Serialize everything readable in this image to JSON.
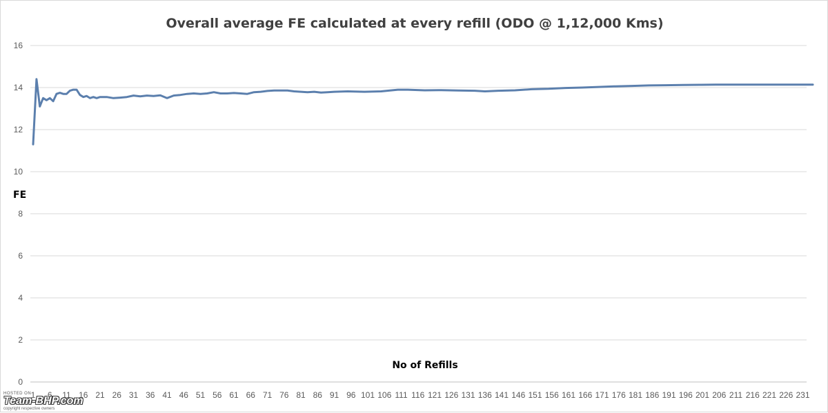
{
  "chart_data": {
    "type": "line",
    "title": "Overall average FE calculated at every refill (ODO @ 1,12,000 Kms)",
    "xlabel": "No of Refills",
    "ylabel": "FE",
    "ylim": [
      0,
      16
    ],
    "yticks": [
      0,
      2,
      4,
      6,
      8,
      10,
      12,
      14,
      16
    ],
    "xlim": [
      1,
      235
    ],
    "xticks": [
      1,
      6,
      11,
      16,
      21,
      26,
      31,
      36,
      41,
      46,
      51,
      56,
      61,
      66,
      71,
      76,
      81,
      86,
      91,
      96,
      101,
      106,
      111,
      116,
      121,
      126,
      131,
      136,
      141,
      146,
      151,
      156,
      161,
      166,
      171,
      176,
      181,
      186,
      191,
      196,
      201,
      206,
      211,
      216,
      221,
      226,
      231
    ],
    "grid": "horizontal",
    "line_color": "#5b7fad",
    "series": [
      {
        "points": [
          [
            1,
            11.3
          ],
          [
            2,
            14.4
          ],
          [
            3,
            13.1
          ],
          [
            4,
            13.5
          ],
          [
            5,
            13.4
          ],
          [
            6,
            13.5
          ],
          [
            7,
            13.35
          ],
          [
            8,
            13.7
          ],
          [
            9,
            13.75
          ],
          [
            10,
            13.7
          ],
          [
            11,
            13.7
          ],
          [
            12,
            13.85
          ],
          [
            13,
            13.9
          ],
          [
            14,
            13.9
          ],
          [
            15,
            13.65
          ],
          [
            16,
            13.55
          ],
          [
            17,
            13.6
          ],
          [
            18,
            13.5
          ],
          [
            19,
            13.55
          ],
          [
            20,
            13.5
          ],
          [
            21,
            13.55
          ],
          [
            23,
            13.55
          ],
          [
            25,
            13.5
          ],
          [
            27,
            13.52
          ],
          [
            29,
            13.55
          ],
          [
            31,
            13.62
          ],
          [
            33,
            13.58
          ],
          [
            35,
            13.62
          ],
          [
            37,
            13.6
          ],
          [
            39,
            13.63
          ],
          [
            41,
            13.5
          ],
          [
            43,
            13.62
          ],
          [
            45,
            13.65
          ],
          [
            47,
            13.7
          ],
          [
            49,
            13.72
          ],
          [
            51,
            13.7
          ],
          [
            53,
            13.72
          ],
          [
            55,
            13.78
          ],
          [
            57,
            13.72
          ],
          [
            59,
            13.72
          ],
          [
            61,
            13.74
          ],
          [
            63,
            13.72
          ],
          [
            65,
            13.7
          ],
          [
            67,
            13.78
          ],
          [
            69,
            13.8
          ],
          [
            71,
            13.84
          ],
          [
            73,
            13.86
          ],
          [
            75,
            13.86
          ],
          [
            77,
            13.86
          ],
          [
            79,
            13.82
          ],
          [
            81,
            13.8
          ],
          [
            83,
            13.78
          ],
          [
            85,
            13.8
          ],
          [
            87,
            13.76
          ],
          [
            89,
            13.78
          ],
          [
            91,
            13.8
          ],
          [
            95,
            13.82
          ],
          [
            100,
            13.8
          ],
          [
            105,
            13.82
          ],
          [
            110,
            13.9
          ],
          [
            113,
            13.9
          ],
          [
            118,
            13.87
          ],
          [
            123,
            13.88
          ],
          [
            128,
            13.86
          ],
          [
            133,
            13.85
          ],
          [
            136,
            13.82
          ],
          [
            140,
            13.85
          ],
          [
            145,
            13.87
          ],
          [
            150,
            13.92
          ],
          [
            155,
            13.94
          ],
          [
            160,
            13.98
          ],
          [
            165,
            14.0
          ],
          [
            170,
            14.03
          ],
          [
            175,
            14.06
          ],
          [
            180,
            14.08
          ],
          [
            185,
            14.1
          ],
          [
            190,
            14.11
          ],
          [
            195,
            14.12
          ],
          [
            200,
            14.13
          ],
          [
            205,
            14.14
          ],
          [
            210,
            14.14
          ],
          [
            215,
            14.14
          ],
          [
            220,
            14.14
          ],
          [
            225,
            14.14
          ],
          [
            230,
            14.14
          ],
          [
            234,
            14.14
          ]
        ]
      }
    ]
  },
  "watermark": {
    "hosted": "HOSTED ON :",
    "brand": "Team-BHP.com",
    "copyright": "copyright respective owners"
  }
}
